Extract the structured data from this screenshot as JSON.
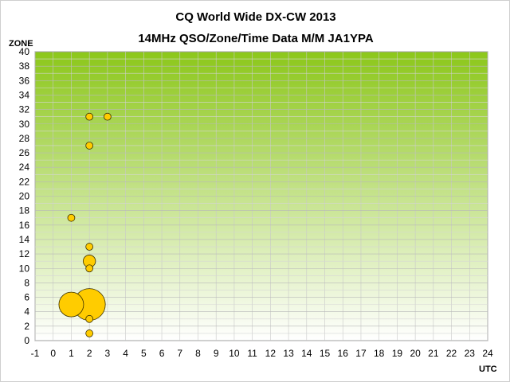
{
  "chart_data": {
    "type": "bubble",
    "title": "CQ World Wide DX-CW 2013",
    "subtitle": "14MHz QSO/Zone/Time Data M/M JA1YPA",
    "ylabel": "ZONE",
    "xlabel": "UTC",
    "xlim": [
      -1,
      24
    ],
    "ylim": [
      0,
      40
    ],
    "xticks": [
      "-1",
      "0",
      "1",
      "2",
      "3",
      "4",
      "5",
      "6",
      "7",
      "8",
      "9",
      "10",
      "11",
      "12",
      "13",
      "14",
      "15",
      "16",
      "17",
      "18",
      "19",
      "20",
      "21",
      "22",
      "23",
      "24"
    ],
    "yticks": [
      "0",
      "2",
      "4",
      "6",
      "8",
      "10",
      "12",
      "14",
      "16",
      "18",
      "20",
      "22",
      "24",
      "26",
      "28",
      "30",
      "32",
      "34",
      "36",
      "38",
      "40"
    ],
    "grid": true,
    "background": {
      "top": "#8cc71a",
      "bottom": "#ffffff"
    },
    "bubble_color": "#ffcc00",
    "points": [
      {
        "x": 1,
        "y": 5,
        "size": 12
      },
      {
        "x": 2,
        "y": 5,
        "size": 20
      },
      {
        "x": 2,
        "y": 1,
        "size": 1
      },
      {
        "x": 2,
        "y": 3,
        "size": 1
      },
      {
        "x": 2,
        "y": 10,
        "size": 1
      },
      {
        "x": 2,
        "y": 11,
        "size": 3
      },
      {
        "x": 2,
        "y": 13,
        "size": 1
      },
      {
        "x": 1,
        "y": 17,
        "size": 1
      },
      {
        "x": 2,
        "y": 27,
        "size": 1
      },
      {
        "x": 2,
        "y": 31,
        "size": 1
      },
      {
        "x": 3,
        "y": 31,
        "size": 1
      }
    ]
  }
}
